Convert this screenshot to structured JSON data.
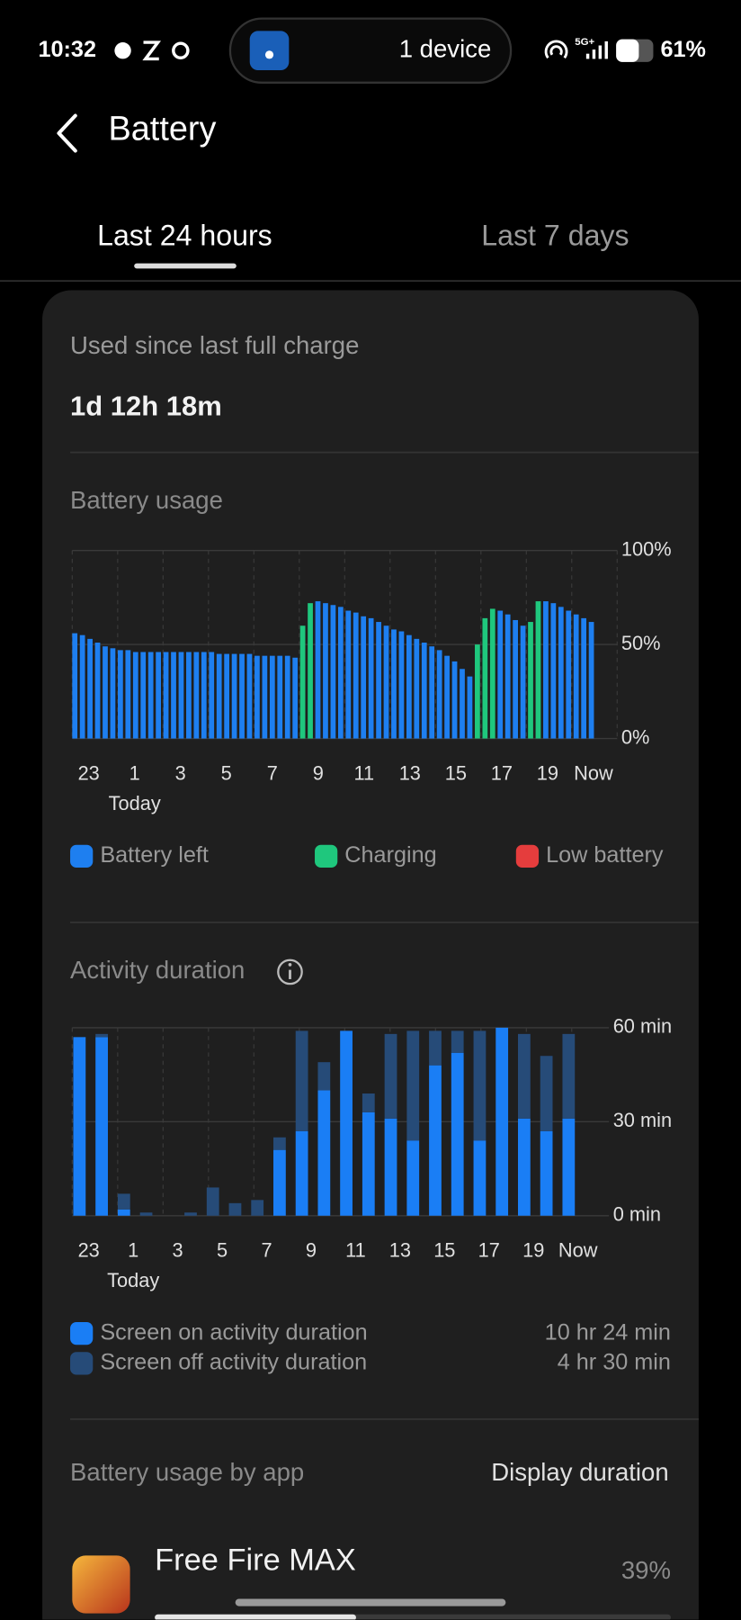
{
  "status_bar": {
    "time": "10:32",
    "notification": "1 device",
    "network": "5G+",
    "battery": "61%"
  },
  "header": {
    "title": "Battery"
  },
  "tabs": [
    "Last 24 hours",
    "Last 7 days"
  ],
  "summary": {
    "label": "Used since last full charge",
    "value": "1d 12h 18m"
  },
  "chart_data": [
    {
      "type": "bar",
      "title": "Battery usage",
      "xtick_labels": [
        "23",
        "1",
        "3",
        "5",
        "7",
        "9",
        "11",
        "13",
        "15",
        "17",
        "19",
        "Now"
      ],
      "x_sublabel": "Today",
      "series": [
        {
          "name": "Battery left",
          "color": "#1e7ff0",
          "values": [
            56,
            55,
            53,
            51,
            49,
            48,
            47,
            47,
            46,
            46,
            46,
            46,
            46,
            46,
            46,
            46,
            46,
            46,
            46,
            45,
            45,
            45,
            45,
            45,
            44,
            44,
            44,
            44,
            44,
            43,
            null,
            null,
            73,
            72,
            71,
            70,
            68,
            67,
            65,
            64,
            62,
            60,
            58,
            57,
            55,
            53,
            51,
            49,
            47,
            44,
            41,
            37,
            33,
            null,
            null,
            null,
            68,
            66,
            63,
            60,
            null,
            null,
            73,
            72,
            70,
            68,
            66,
            64,
            62
          ]
        },
        {
          "name": "Charging",
          "color": "#1fc77d",
          "values": [
            null,
            null,
            null,
            null,
            null,
            null,
            null,
            null,
            null,
            null,
            null,
            null,
            null,
            null,
            null,
            null,
            null,
            null,
            null,
            null,
            null,
            null,
            null,
            null,
            null,
            null,
            null,
            null,
            null,
            null,
            60,
            72,
            null,
            null,
            null,
            null,
            null,
            null,
            null,
            null,
            null,
            null,
            null,
            null,
            null,
            null,
            null,
            null,
            null,
            null,
            null,
            null,
            null,
            50,
            64,
            69,
            null,
            null,
            null,
            null,
            62,
            73,
            null,
            null,
            null,
            null,
            null,
            null,
            null
          ]
        },
        {
          "name": "Low battery",
          "color": "#e53d3d",
          "values": [
            null,
            null,
            null,
            null,
            null,
            null,
            null,
            null,
            null,
            null,
            null,
            null,
            null,
            null,
            null,
            null,
            null,
            null,
            null,
            null,
            null,
            null,
            null,
            null,
            null,
            null,
            null,
            null,
            null,
            null,
            null,
            null,
            null,
            null,
            null,
            null,
            null,
            null,
            null,
            null,
            null,
            null,
            null,
            null,
            null,
            null,
            null,
            null,
            null,
            null,
            null,
            null,
            null,
            null,
            null,
            null,
            null,
            null,
            null,
            null,
            null,
            null,
            null,
            null,
            null,
            null,
            null,
            null,
            null
          ]
        }
      ],
      "ylim": [
        0,
        100
      ],
      "yticks": [
        {
          "value": 0,
          "label": "0%"
        },
        {
          "value": 50,
          "label": "50%"
        },
        {
          "value": 100,
          "label": "100%"
        }
      ],
      "grid": true
    },
    {
      "type": "stacked_bar",
      "title": "Activity duration",
      "xtick_labels": [
        "23",
        "1",
        "3",
        "5",
        "7",
        "9",
        "11",
        "13",
        "15",
        "17",
        "19",
        "Now"
      ],
      "x_sublabel": "Today",
      "series": [
        {
          "name": "Screen on activity duration",
          "color": "#1a7ef5",
          "total": "10 hr 24 min",
          "values": [
            57,
            57,
            2,
            0,
            0,
            0,
            0,
            0,
            0,
            21,
            27,
            40,
            59,
            33,
            31,
            24,
            48,
            52,
            24,
            60,
            31,
            27,
            31
          ]
        },
        {
          "name": "Screen off activity duration",
          "color": "#264b78",
          "total": "4 hr 30 min",
          "values": [
            0,
            1,
            5,
            1,
            0,
            1,
            9,
            4,
            5,
            4,
            32,
            9,
            0,
            6,
            27,
            35,
            11,
            7,
            35,
            0,
            27,
            24,
            27
          ]
        }
      ],
      "ylim": [
        0,
        60
      ],
      "yticks": [
        {
          "value": 0,
          "label": "0 min"
        },
        {
          "value": 30,
          "label": "30 min"
        },
        {
          "value": 60,
          "label": "60 min"
        }
      ],
      "grid": true
    }
  ],
  "app_usage": {
    "title": "Battery usage by app",
    "sort": "Display duration",
    "apps": [
      {
        "name": "Free Fire MAX",
        "share": "39%"
      }
    ]
  }
}
